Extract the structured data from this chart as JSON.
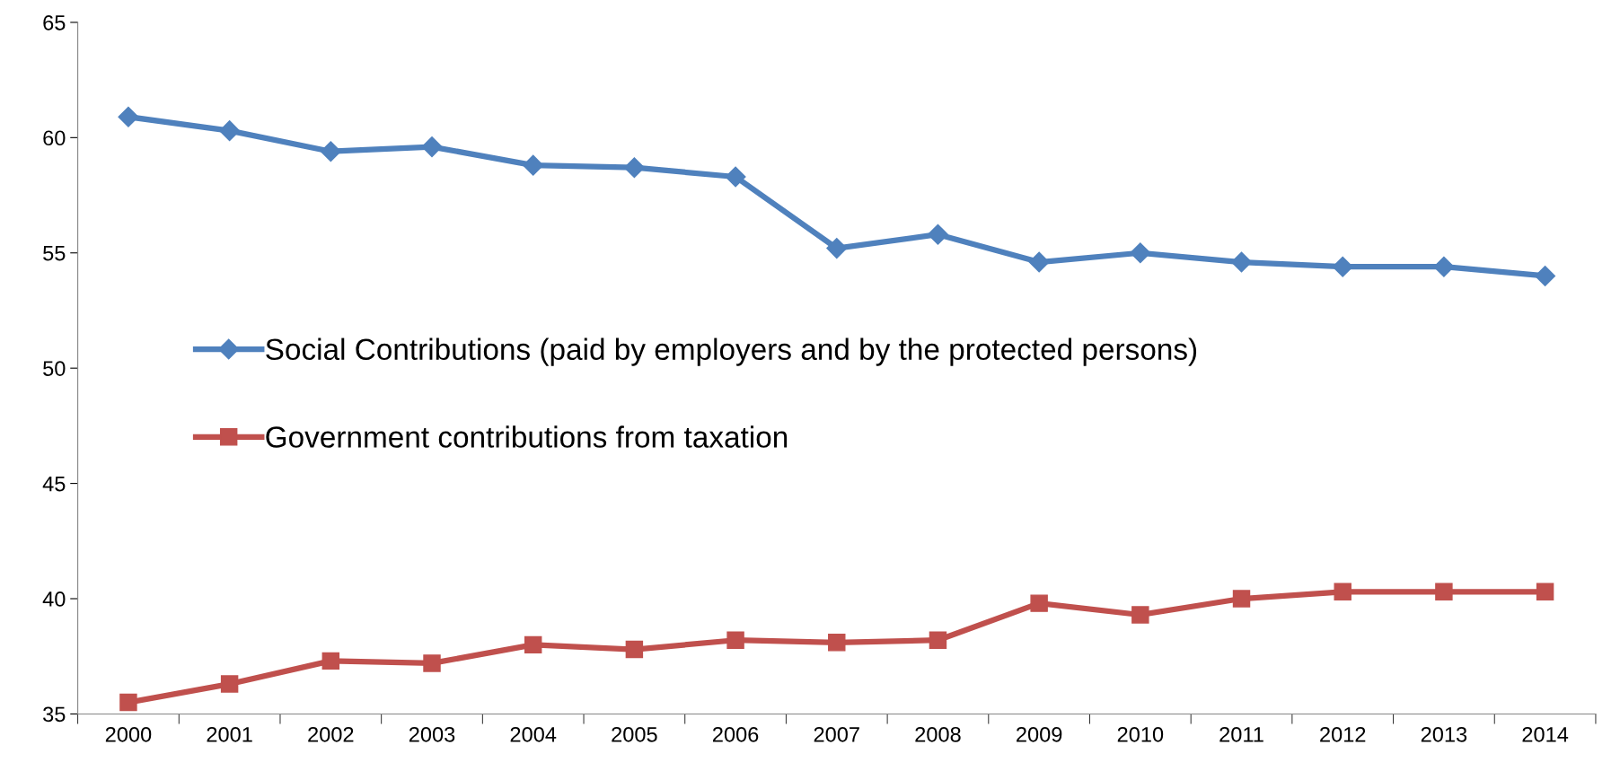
{
  "chart_data": {
    "type": "line",
    "categories": [
      "2000",
      "2001",
      "2002",
      "2003",
      "2004",
      "2005",
      "2006",
      "2007",
      "2008",
      "2009",
      "2010",
      "2011",
      "2012",
      "2013",
      "2014"
    ],
    "series": [
      {
        "name": "Social Contributions (paid by employers and by the protected persons)",
        "color": "#4f81bd",
        "marker": "diamond",
        "values": [
          60.9,
          60.3,
          59.4,
          59.6,
          58.8,
          58.7,
          58.3,
          55.2,
          55.8,
          54.6,
          55.0,
          54.6,
          54.4,
          54.4,
          54.0
        ]
      },
      {
        "name": "Government contributions from taxation",
        "color": "#c0504d",
        "marker": "square",
        "values": [
          35.5,
          36.3,
          37.3,
          37.2,
          38.0,
          37.8,
          38.2,
          38.1,
          38.2,
          39.8,
          39.3,
          40.0,
          40.3,
          40.3,
          40.3
        ]
      }
    ],
    "ylim": [
      35,
      65
    ],
    "yticks": [
      35,
      40,
      45,
      50,
      55,
      60,
      65
    ],
    "grid": false,
    "legend": "left",
    "line_style": "solid"
  }
}
